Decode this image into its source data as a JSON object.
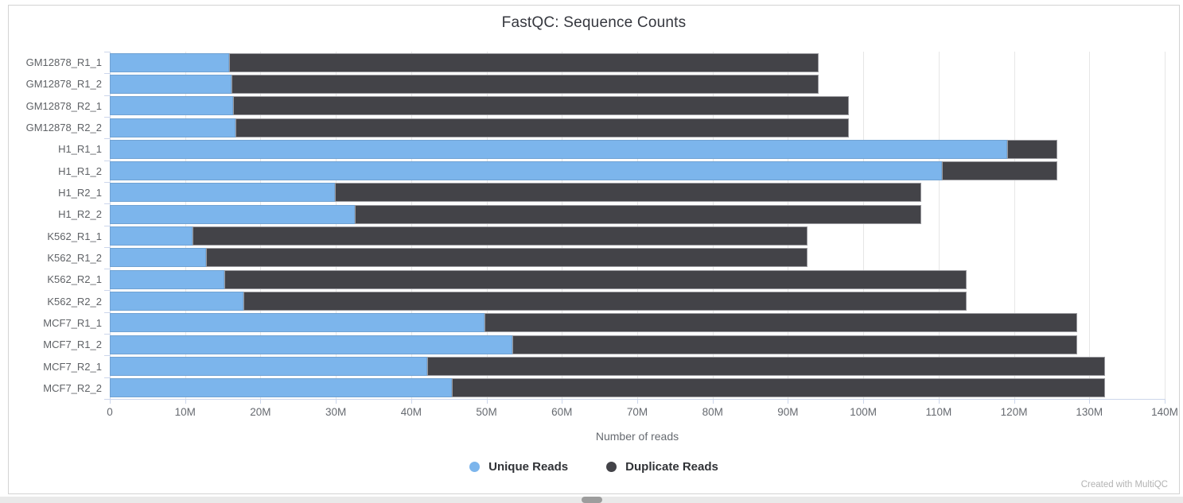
{
  "chart_data": {
    "type": "bar",
    "stacked": true,
    "orientation": "horizontal",
    "title": "FastQC: Sequence Counts",
    "xlabel": "Number of reads",
    "xlim": [
      0,
      140
    ],
    "x_unit": "M",
    "x_tick_labels": [
      "0",
      "10M",
      "20M",
      "30M",
      "40M",
      "50M",
      "60M",
      "70M",
      "80M",
      "90M",
      "100M",
      "110M",
      "120M",
      "130M",
      "140M"
    ],
    "grid": true,
    "legend_position": "bottom",
    "categories": [
      "GM12878_R1_1",
      "GM12878_R1_2",
      "GM12878_R2_1",
      "GM12878_R2_2",
      "H1_R1_1",
      "H1_R1_2",
      "H1_R2_1",
      "H1_R2_2",
      "K562_R1_1",
      "K562_R1_2",
      "K562_R2_1",
      "K562_R2_2",
      "MCF7_R1_1",
      "MCF7_R1_2",
      "MCF7_R2_1",
      "MCF7_R2_2"
    ],
    "series": [
      {
        "name": "Unique Reads",
        "color": "#7cb5ec",
        "values": [
          15.8,
          16.2,
          16.4,
          16.7,
          119.1,
          110.4,
          29.9,
          32.5,
          11.0,
          12.8,
          15.2,
          17.7,
          49.7,
          53.4,
          42.1,
          45.4
        ]
      },
      {
        "name": "Duplicate Reads",
        "color": "#434348",
        "values": [
          78.3,
          77.9,
          81.7,
          81.4,
          6.7,
          15.4,
          77.8,
          75.2,
          81.6,
          79.8,
          98.5,
          96.0,
          78.7,
          75.0,
          90.0,
          86.7
        ]
      }
    ],
    "values_unit": "millions of reads"
  },
  "footer": {
    "credit": "Created with MultiQC"
  },
  "colors": {
    "unique": "#7cb5ec",
    "duplicate": "#434348",
    "gridline": "#e6e6e6",
    "axis_line": "#ccd6eb",
    "tick_label": "#666a70",
    "category_label": "#5f6266",
    "title": "#35373e",
    "legend_text": "#303236",
    "credit": "#b3b3b3",
    "panel_border": "#d3d3d3",
    "scrollbar_track": "#e9e9e9",
    "scrollbar_thumb": "#9d9d9d"
  }
}
